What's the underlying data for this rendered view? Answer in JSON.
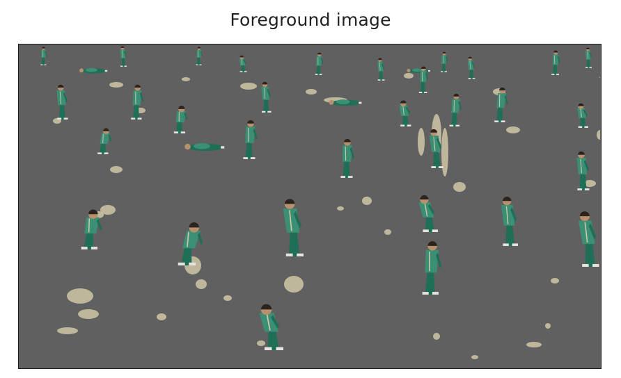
{
  "figure": {
    "title": "Foreground image"
  },
  "image": {
    "background_color": "#606060",
    "figure_color": "#1f6e58",
    "figure_highlight": "#3a8f75",
    "skin_color": "#b7906e",
    "hair_color": "#2b231d",
    "residue_color": "#cfc7a7",
    "shoe_color": "#e6e3dc"
  }
}
